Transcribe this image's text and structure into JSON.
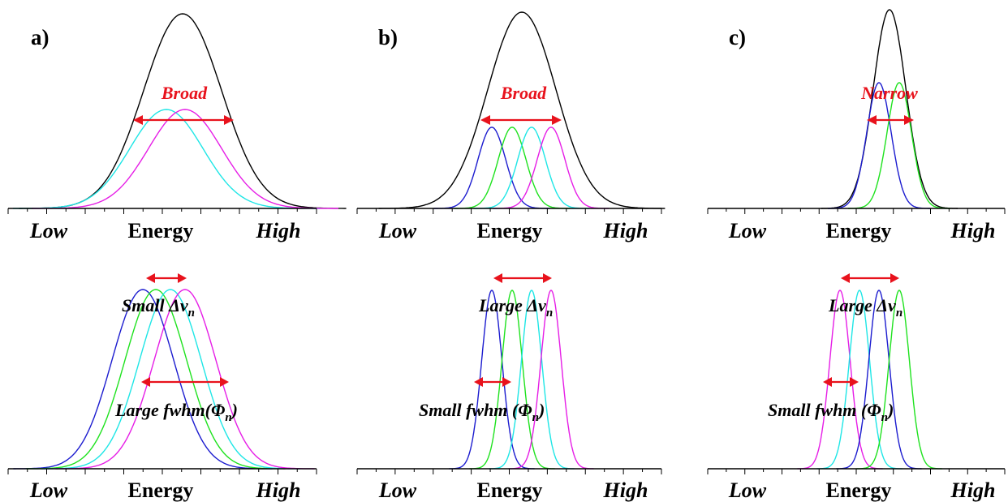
{
  "colors": {
    "envelope": "#000000",
    "blue": "#1c1ccf",
    "green": "#1ee21e",
    "cyan": "#1ee6e6",
    "magenta": "#e61ee6",
    "annotation": "#e8121c"
  },
  "axis_words": {
    "low": "Low",
    "mid": "Energy",
    "high": "High"
  },
  "panels": [
    {
      "id": "a",
      "letter": "a)",
      "top_label": "Broad",
      "delta_label": "Small Δv",
      "fwhm_label": "Large fwhm(Φ",
      "subscript": "n",
      "close_paren": ")"
    },
    {
      "id": "b",
      "letter": "b)",
      "top_label": "Broad",
      "delta_label": "Large Δv",
      "fwhm_label": "Small fwhm (Φ",
      "subscript": "n",
      "close_paren": ")"
    },
    {
      "id": "c",
      "letter": "c)",
      "top_label": "Narrow",
      "delta_label": "Large Δv",
      "fwhm_label": "Small fwhm (Φ",
      "subscript": "n",
      "close_paren": ")"
    }
  ]
}
